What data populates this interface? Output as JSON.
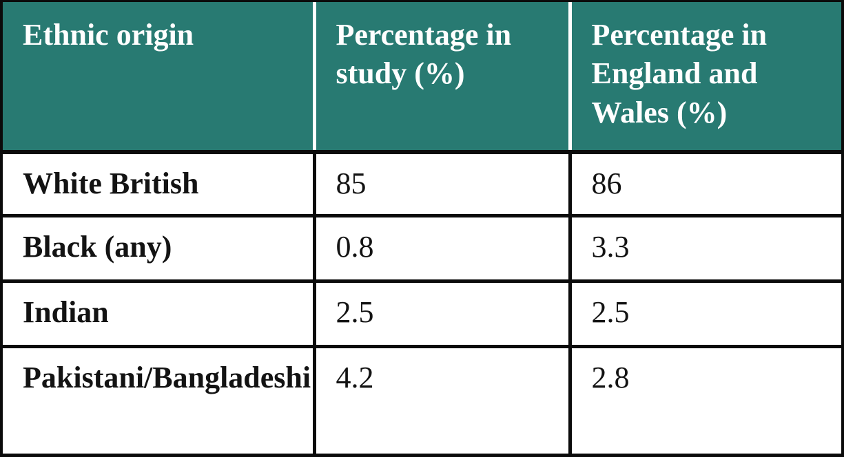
{
  "colors": {
    "header_bg": "#287a72",
    "header_text": "#ffffff",
    "header_divider": "#ffffff",
    "border": "#0b0b0b",
    "body_text": "#131313"
  },
  "table": {
    "header": [
      {
        "label": "Ethnic origin"
      },
      {
        "label": "Percentage in study (%)"
      },
      {
        "label": "Percentage in England and Wales (%)"
      }
    ],
    "rows": [
      {
        "label": "White British",
        "study": "85",
        "england_wales": "86"
      },
      {
        "label": "Black (any)",
        "study": "0.8",
        "england_wales": "3.3"
      },
      {
        "label": "Indian",
        "study": "2.5",
        "england_wales": "2.5"
      },
      {
        "label": "Pakistani/Bangladeshi",
        "study": "4.2",
        "england_wales": "2.8"
      }
    ]
  },
  "chart_data": {
    "type": "table",
    "title": "",
    "columns": [
      "Ethnic origin",
      "Percentage in study (%)",
      "Percentage in England and Wales (%)"
    ],
    "rows": [
      [
        "White British",
        85,
        86
      ],
      [
        "Black (any)",
        0.8,
        3.3
      ],
      [
        "Indian",
        2.5,
        2.5
      ],
      [
        "Pakistani/Bangladeshi",
        4.2,
        2.8
      ]
    ]
  }
}
